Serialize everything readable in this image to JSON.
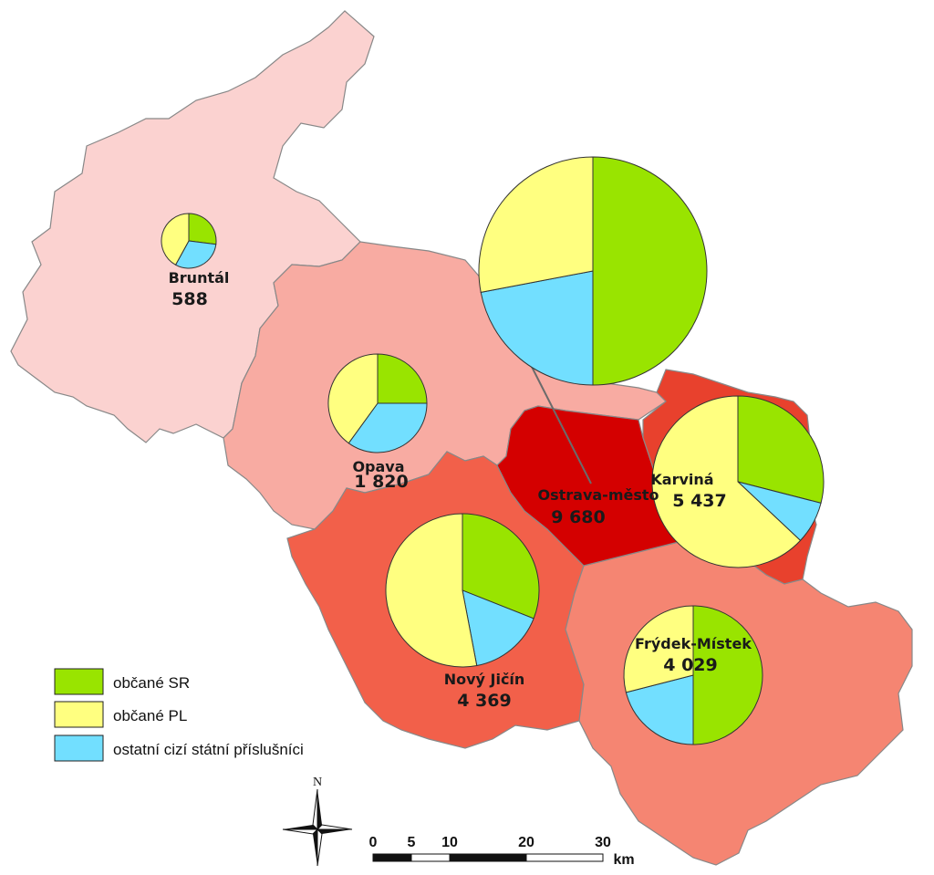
{
  "legend": [
    {
      "label": "občané SR",
      "color": "#99e400"
    },
    {
      "label": "občané PL",
      "color": "#ffff80"
    },
    {
      "label": "ostatní cizí státní příslušníci",
      "color": "#72dfff"
    }
  ],
  "districts": [
    {
      "id": "bruntal",
      "name": "Bruntál",
      "total": "588",
      "fill": "#fbd2d0",
      "shares": [
        0.27,
        0.42,
        0.31
      ]
    },
    {
      "id": "opava",
      "name": "Opava",
      "total": "1 820",
      "fill": "#f8aba2",
      "shares": [
        0.25,
        0.4,
        0.35
      ]
    },
    {
      "id": "ostrava",
      "name": "Ostrava-město",
      "total": "9 680",
      "fill": "#d40000",
      "shares": [
        0.5,
        0.28,
        0.22
      ]
    },
    {
      "id": "karvina",
      "name": "Karviná",
      "total": "5 437",
      "fill": "#e8412d",
      "shares": [
        0.29,
        0.63,
        0.08
      ]
    },
    {
      "id": "novy-jicin",
      "name": "Nový Jičín",
      "total": "4 369",
      "fill": "#f2604a",
      "shares": [
        0.31,
        0.53,
        0.16
      ]
    },
    {
      "id": "frydek",
      "name": "Frýdek-Místek",
      "total": "4 029",
      "fill": "#f58572",
      "shares": [
        0.5,
        0.29,
        0.21
      ]
    }
  ],
  "scale_bar": {
    "ticks": [
      "0",
      "5",
      "10",
      "20",
      "30"
    ],
    "unit": "km"
  },
  "north_arrow": {
    "label": "N",
    "icon": "compass-rose-icon"
  }
}
